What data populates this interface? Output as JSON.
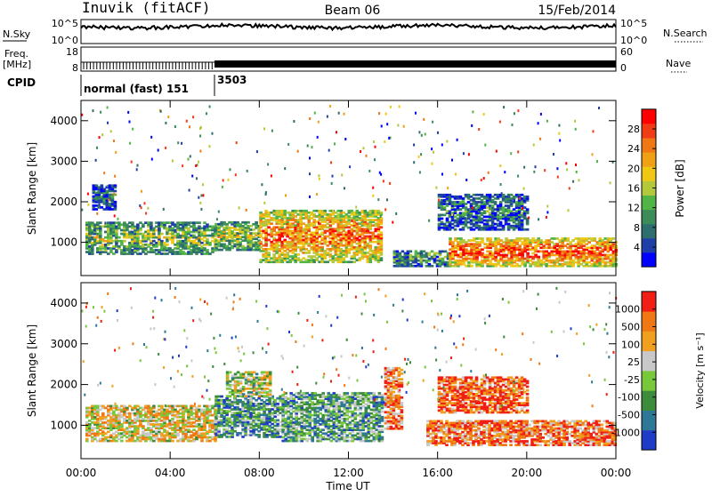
{
  "header": {
    "station": "Inuvik (fitACF)",
    "beam": "Beam 06",
    "date": "15/Feb/2014"
  },
  "top_panels": {
    "nsky_label": "N.Sky",
    "nsearch_label": "N.Search",
    "nsky_ticks": [
      "10^5",
      "10^0"
    ],
    "nsearch_ticks": [
      "10^5",
      "10^0"
    ],
    "freq_label": "Freq.",
    "freq_unit": "[MHz]",
    "freq_ticks": [
      "18",
      "8"
    ],
    "nave_label": "Nave",
    "nave_ticks": [
      "60",
      "0"
    ],
    "cpid_label": "CPID",
    "cpid_segments": [
      {
        "label": "normal (fast) 151",
        "start_hour": 0,
        "end_hour": 6
      },
      {
        "label": "3503",
        "start_hour": 6,
        "end_hour": 24
      }
    ]
  },
  "chart_data": [
    {
      "type": "heatmap",
      "title": "",
      "xlabel": "",
      "ylabel": "Slant Range [km]",
      "xlim": [
        0,
        24
      ],
      "ylim": [
        180,
        4500
      ],
      "x_ticks": [
        "00:00",
        "04:00",
        "08:00",
        "12:00",
        "16:00",
        "20:00",
        "00:00"
      ],
      "y_ticks": [
        1000,
        2000,
        3000,
        4000
      ],
      "colorbar": {
        "label": "Power [dB]",
        "ticks": [
          "28",
          "24",
          "20",
          "16",
          "12",
          "8",
          "4"
        ],
        "colors": [
          "#0000ff",
          "#1f3fa8",
          "#2e6e6e",
          "#3c8c5a",
          "#50b446",
          "#b4c83c",
          "#f0c814",
          "#f0a014",
          "#f07814",
          "#f03c14",
          "#ff0000"
        ]
      },
      "bands": [
        {
          "t0": 0.2,
          "t1": 6.0,
          "r0": 700,
          "r1": 1500,
          "level": 0.45
        },
        {
          "t0": 6.0,
          "t1": 8.0,
          "r0": 800,
          "r1": 1500,
          "level": 0.5
        },
        {
          "t0": 8.0,
          "t1": 13.5,
          "r0": 500,
          "r1": 1800,
          "level": 0.8
        },
        {
          "t0": 14.0,
          "t1": 16.5,
          "r0": 400,
          "r1": 800,
          "level": 0.35
        },
        {
          "t0": 16.5,
          "t1": 24.0,
          "r0": 400,
          "r1": 1100,
          "level": 0.9
        },
        {
          "t0": 0.5,
          "t1": 1.5,
          "r0": 1800,
          "r1": 2400,
          "level": 0.2
        },
        {
          "t0": 16.0,
          "t1": 20.0,
          "r0": 1300,
          "r1": 2200,
          "level": 0.25
        }
      ]
    },
    {
      "type": "heatmap",
      "title": "",
      "xlabel": "Time UT",
      "ylabel": "Slant Range [km]",
      "xlim": [
        0,
        24
      ],
      "ylim": [
        180,
        4500
      ],
      "x_ticks": [
        "00:00",
        "04:00",
        "08:00",
        "12:00",
        "16:00",
        "20:00",
        "00:00"
      ],
      "y_ticks": [
        1000,
        2000,
        3000,
        4000
      ],
      "colorbar": {
        "label": "Velocity [m s⁻¹]",
        "ticks": [
          "1000",
          "500",
          "100",
          "25",
          "-25",
          "-100",
          "-500",
          "-1000"
        ],
        "colors": [
          "#1e3cc8",
          "#2d7896",
          "#3c8c3c",
          "#78c83c",
          "#c8c8c8",
          "#f0a01e",
          "#f07814",
          "#f01e14"
        ]
      },
      "bands": [
        {
          "t0": 0.2,
          "t1": 6.0,
          "r0": 600,
          "r1": 1500,
          "level": 0.6
        },
        {
          "t0": 6.0,
          "t1": 9.0,
          "r0": 700,
          "r1": 1700,
          "level": 0.3
        },
        {
          "t0": 6.5,
          "t1": 8.5,
          "r0": 1700,
          "r1": 2300,
          "level": 0.5
        },
        {
          "t0": 9.0,
          "t1": 13.5,
          "r0": 600,
          "r1": 1800,
          "level": 0.35
        },
        {
          "t0": 13.6,
          "t1": 14.4,
          "r0": 900,
          "r1": 2400,
          "level": 0.8
        },
        {
          "t0": 15.5,
          "t1": 24.0,
          "r0": 500,
          "r1": 1100,
          "level": 0.8
        },
        {
          "t0": 16.0,
          "t1": 20.0,
          "r0": 1300,
          "r1": 2200,
          "level": 0.85
        }
      ]
    }
  ]
}
